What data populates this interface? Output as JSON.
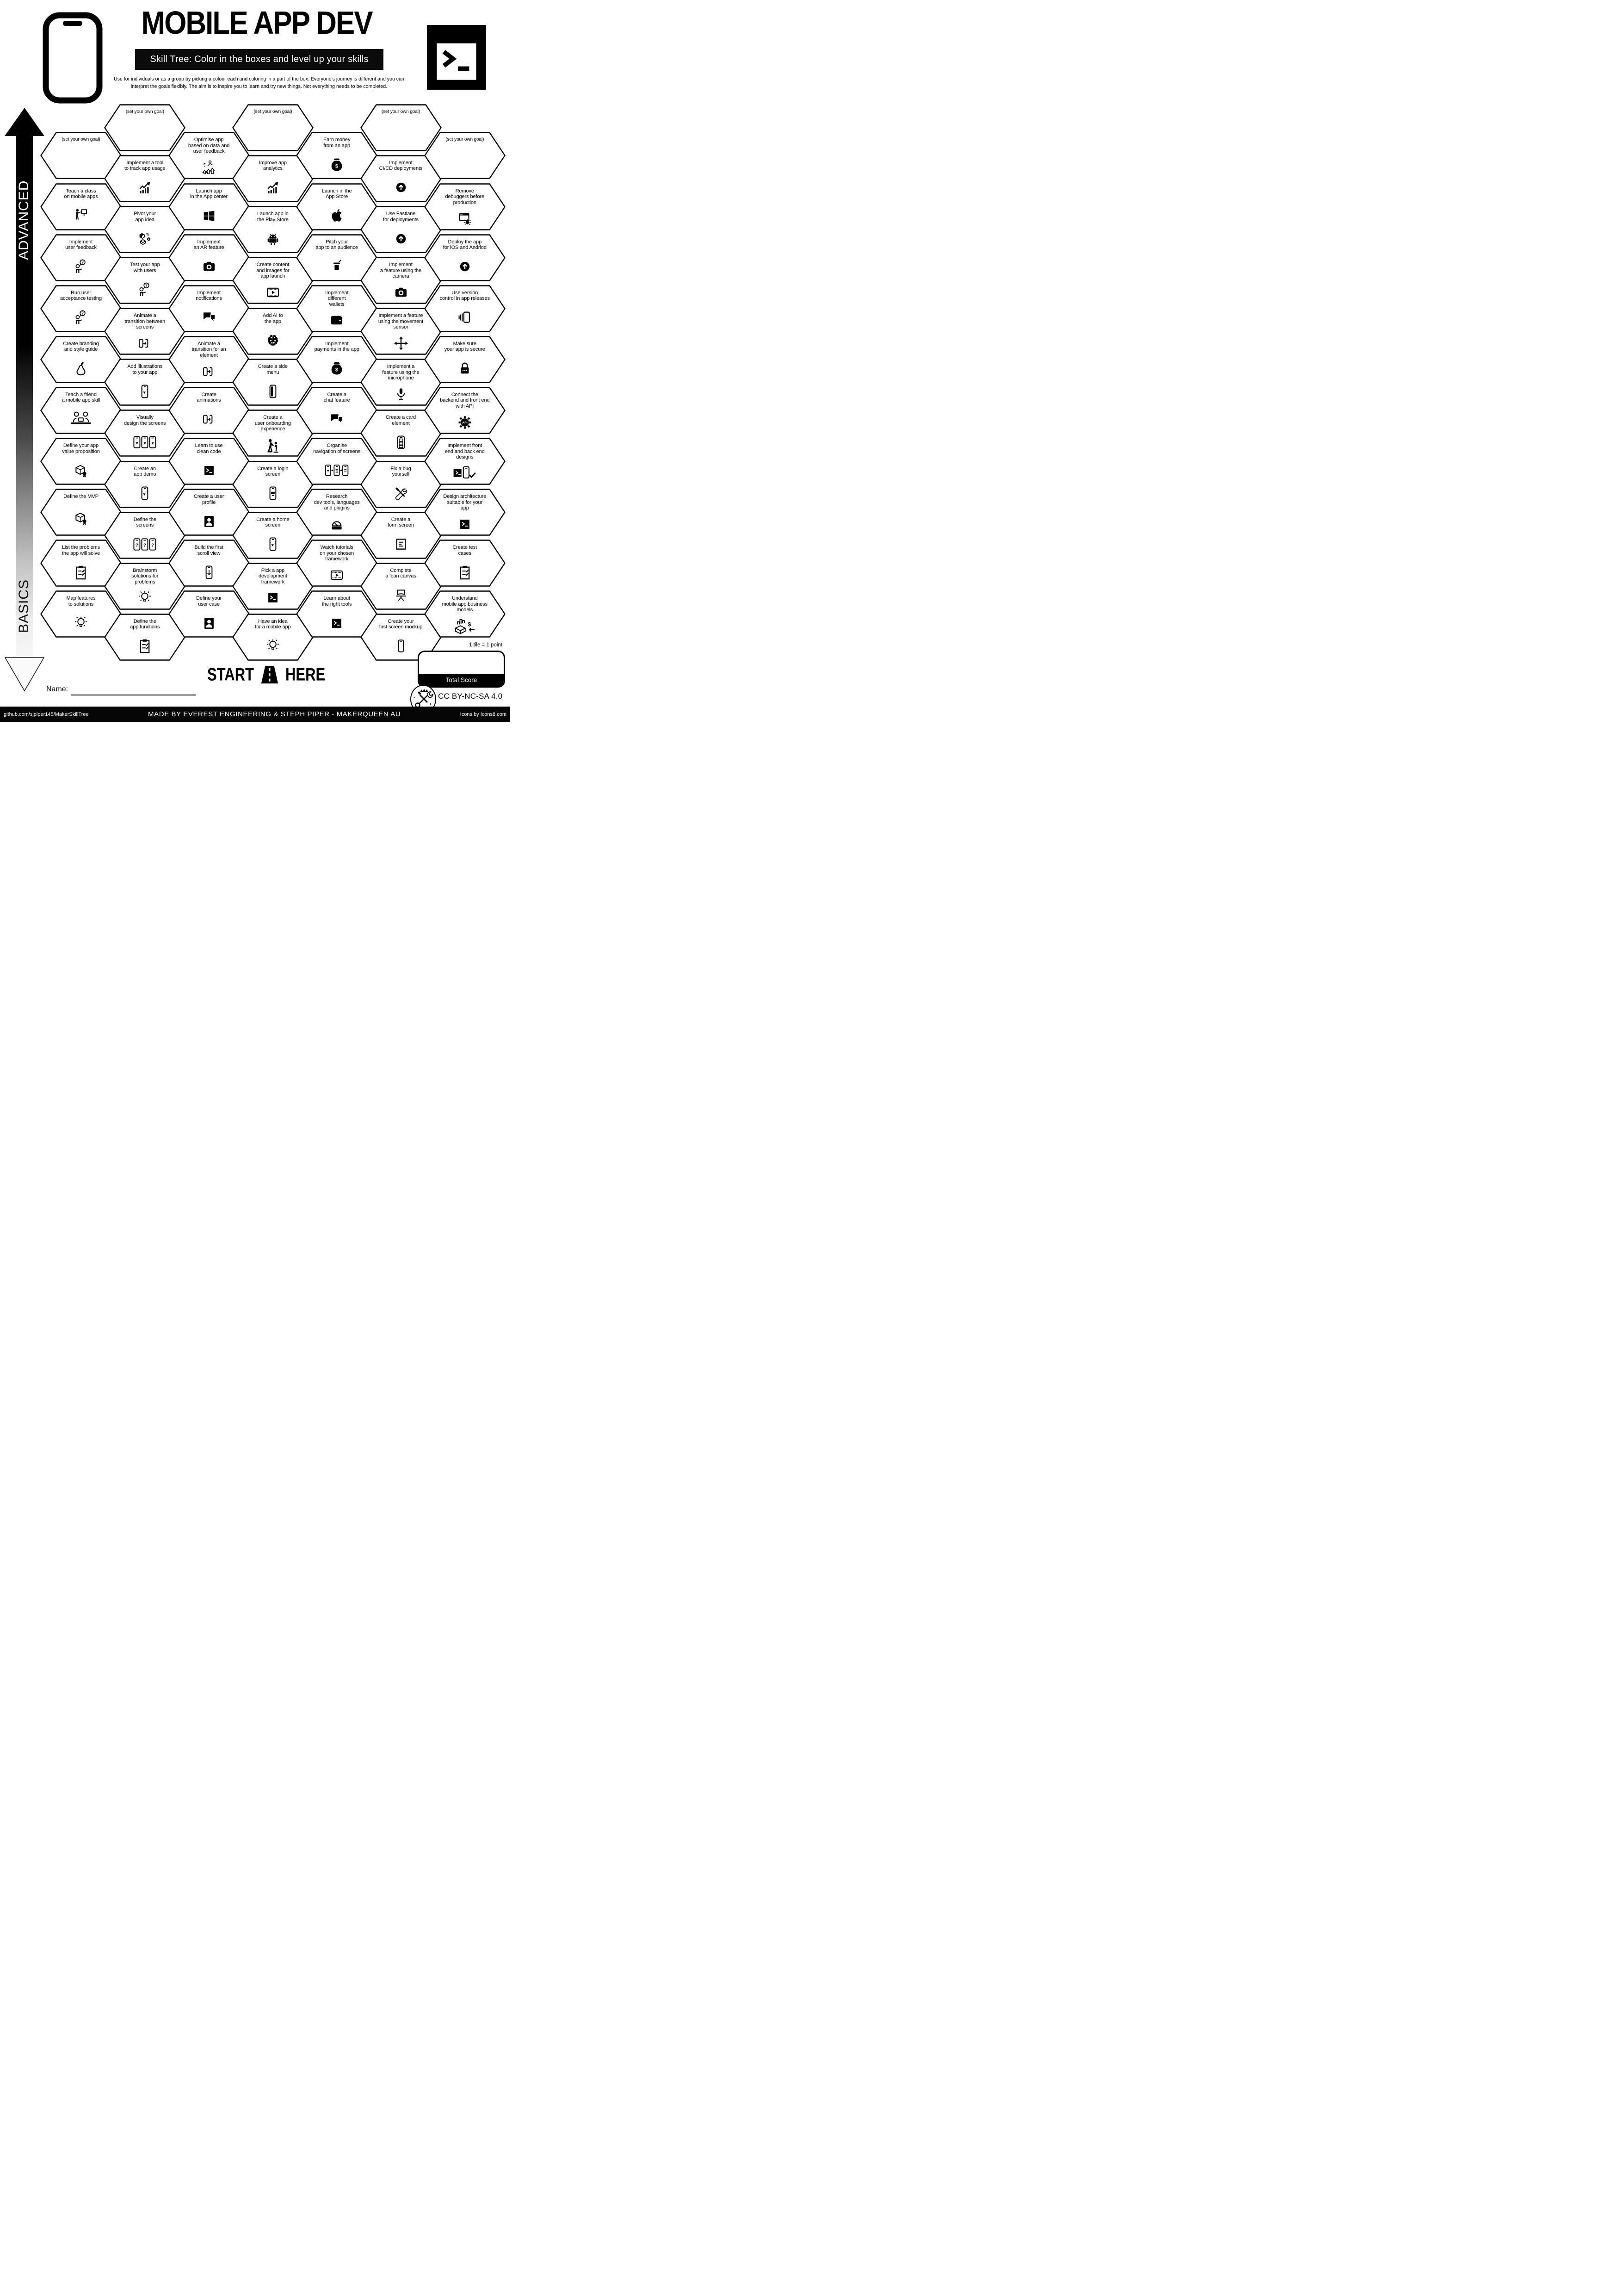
{
  "header": {
    "title": "MOBILE APP DEV",
    "subtitle": "Skill Tree:  Color in the boxes and level up your skills",
    "description_line1": "Use for individuals or as a group by picking a colour each and coloring in a part of the box.  Everyone's journey is different and you can",
    "description_line2": "interpret the goals flexibly.  The aim is to inspire you to learn and try new things. Not everything needs to be completed."
  },
  "axis": {
    "top_label": "ADVANCED",
    "bottom_label": "BASICS"
  },
  "start_marker": {
    "start": "START",
    "here": "HERE"
  },
  "name_label": "Name:",
  "scoring": {
    "tile_note": "1 tile = 1 point",
    "total_label": "Total Score"
  },
  "license": "CC BY-NC-SA 4.0",
  "footer": {
    "left": "github.com/sjpiper145/MakerSkillTree",
    "center": "MADE BY EVEREST ENGINEERING & STEPH PIPER  -  MAKERQUEEN AU",
    "right": "Icons by Icons8.com"
  },
  "colors": {
    "ink": "#000000",
    "paper": "#ffffff"
  },
  "columns": [
    {
      "items": [
        {
          "label": "(set your own goal)",
          "icon": null,
          "goal": true
        },
        {
          "label": "Teach a class\non mobile apps",
          "icon": "person-presenting-icon"
        },
        {
          "label": "Implement\nuser feedback",
          "icon": "person-question-icon"
        },
        {
          "label": "Run user\nacceptance testing",
          "icon": "person-question-icon"
        },
        {
          "label": "Create branding\nand style guide",
          "icon": "pear-icon"
        },
        {
          "label": "Teach a friend\na mobile app skill",
          "icon": "people-laptop-icon"
        },
        {
          "label": "Define your app\nvalue proposition",
          "icon": "box-badge-icon"
        },
        {
          "label": "Define the MVP",
          "icon": "box-badge-icon"
        },
        {
          "label": "List the problems\nthe app will solve",
          "icon": "clipboard-check-icon"
        },
        {
          "label": "Map features\nto solutions",
          "icon": "lightbulb-icon"
        }
      ]
    },
    {
      "items": [
        {
          "label": "(set your own goal)",
          "icon": null,
          "goal": true
        },
        {
          "label": "Implement a tool\nto track app usage",
          "icon": "chart-up-icon"
        },
        {
          "label": "Pivot your\napp idea",
          "icon": "pivot-cube-icon"
        },
        {
          "label": "Test your app\nwith users",
          "icon": "person-question-icon"
        },
        {
          "label": "Animate a\ntransition between\nscreens",
          "icon": "phone-transition-icon"
        },
        {
          "label": "Add illustrations\nto your app",
          "icon": "phone-hearts-icon"
        },
        {
          "label": "Visually\ndesign the screens",
          "icon": "phones-three-hearts-icon"
        },
        {
          "label": "Create an\napp demo",
          "icon": "phone-hearts-icon"
        },
        {
          "label": "Define the\nscreens",
          "icon": "phones-three-question-icon"
        },
        {
          "label": "Brainstorm\nsolutions for\nproblems",
          "icon": "lightbulb-icon"
        },
        {
          "label": "Define the\napp functions",
          "icon": "clipboard-check-icon"
        }
      ]
    },
    {
      "items": [
        {
          "label": "Optimise app\nbased on data and\nuser feedback",
          "icon": "runner-arrows-icon"
        },
        {
          "label": "Launch app\nin the App center",
          "icon": "windows-icon"
        },
        {
          "label": "Implement\nan AR feature",
          "icon": "camera-icon"
        },
        {
          "label": "Implement\nnotifications",
          "icon": "chat-bubbles-icon"
        },
        {
          "label": "Animate a\ntransition for an\nelement",
          "icon": "phone-transition-icon"
        },
        {
          "label": "Create\nanimations",
          "icon": "phone-transition-icon"
        },
        {
          "label": "Learn to use\nclean code",
          "icon": "terminal-filled-icon"
        },
        {
          "label": "Create a user\nprofile",
          "icon": "person-card-icon"
        },
        {
          "label": "Build the first\nscroll view",
          "icon": "phone-scroll-icon"
        },
        {
          "label": "Define your\nuser case",
          "icon": "person-card-icon"
        }
      ]
    },
    {
      "items": [
        {
          "label": "(set your own goal)",
          "icon": null,
          "goal": true
        },
        {
          "label": "Improve app\nanalytics",
          "icon": "chart-up-icon"
        },
        {
          "label": "Launch app in\nthe Play Store",
          "icon": "android-icon"
        },
        {
          "label": "Create content\nand images for\napp launch",
          "icon": "film-play-icon"
        },
        {
          "label": "Add AI to\nthe app",
          "icon": "brain-icon"
        },
        {
          "label": "Create a side\nmenu",
          "icon": "phone-sidemenu-icon"
        },
        {
          "label": "Create a\nuser onboarding\nexperience",
          "icon": "person-helping-icon"
        },
        {
          "label": "Create a login\nscreen",
          "icon": "phone-login-icon"
        },
        {
          "label": "Create a home\nscreen",
          "icon": "phone-hearts-icon"
        },
        {
          "label": "Pick a app\ndevelopment\nframework",
          "icon": "terminal-filled-icon"
        },
        {
          "label": "Have an idea\nfor a mobile app",
          "icon": "lightbulb-icon"
        }
      ]
    },
    {
      "items": [
        {
          "label": "Earn money\nfrom an app",
          "icon": "money-bag-icon"
        },
        {
          "label": "Launch in the\nApp Store",
          "icon": "apple-icon"
        },
        {
          "label": "Pitch your\napp to an audience",
          "icon": "podium-icon"
        },
        {
          "label": "Implement\ndifferent\nwallets",
          "icon": "wallet-icon"
        },
        {
          "label": "Implement\npayments in the app",
          "icon": "money-bag-icon"
        },
        {
          "label": "Create a\nchat feature",
          "icon": "chat-bubbles-icon"
        },
        {
          "label": "Organise\nnavigation of screens",
          "icon": "phones-flow-icon"
        },
        {
          "label": "Research\ndev tools, languages\nand plugins",
          "icon": "gauge-icon"
        },
        {
          "label": "Watch tutorials\non your chosen\nframework",
          "icon": "film-play-icon"
        },
        {
          "label": "Learn about\nthe right tools",
          "icon": "terminal-filled-icon"
        }
      ]
    },
    {
      "items": [
        {
          "label": "(set your own goal)",
          "icon": null,
          "goal": true
        },
        {
          "label": "Implement\nCI/CD deployments",
          "icon": "arrow-up-circle-icon"
        },
        {
          "label": "Use Fastlane\nfor deployments",
          "icon": "arrow-up-circle-icon"
        },
        {
          "label": "Implement\na feature using the\ncamera",
          "icon": "camera-icon"
        },
        {
          "label": "Implement a feature\nusing the movement\nsensor",
          "icon": "move-arrows-icon"
        },
        {
          "label": "Implement a\nfeature using the\nmicrophone",
          "icon": "mic-icon"
        },
        {
          "label": "Create a card\nelement",
          "icon": "phone-cards-icon"
        },
        {
          "label": "Fix a bug\nyourself",
          "icon": "tools-icon"
        },
        {
          "label": "Create a\nform screen",
          "icon": "form-doc-icon"
        },
        {
          "label": "Complete\na lean canvas",
          "icon": "easel-icon"
        },
        {
          "label": "Create your\nfirst screen mockup",
          "icon": "phone-outline-icon"
        }
      ]
    },
    {
      "items": [
        {
          "label": "(set your own goal)",
          "icon": null,
          "goal": true
        },
        {
          "label": "Remove\ndebuggers before\nproduction",
          "icon": "window-bug-icon"
        },
        {
          "label": "Deploy the app\nfor iOS and Andriod",
          "icon": "arrow-up-circle-icon"
        },
        {
          "label": "Use version\ncontrol in app releases",
          "icon": "phone-stack-icon"
        },
        {
          "label": "Make sure\nyour app is secure",
          "icon": "lock-icon"
        },
        {
          "label": "Connect the\nbackend and front end\nwith API",
          "icon": "api-gear-icon"
        },
        {
          "label": "Implement front\nend and back end\ndesigns",
          "icon": "terminal-phone-check-icon"
        },
        {
          "label": "Design architecture\nsuitable for your\napp",
          "icon": "terminal-filled-icon"
        },
        {
          "label": "Create test\ncases",
          "icon": "clipboard-check-icon"
        },
        {
          "label": "Understand\nmobile app business\nmodels",
          "icon": "box-chart-dollar-icon"
        }
      ]
    }
  ]
}
